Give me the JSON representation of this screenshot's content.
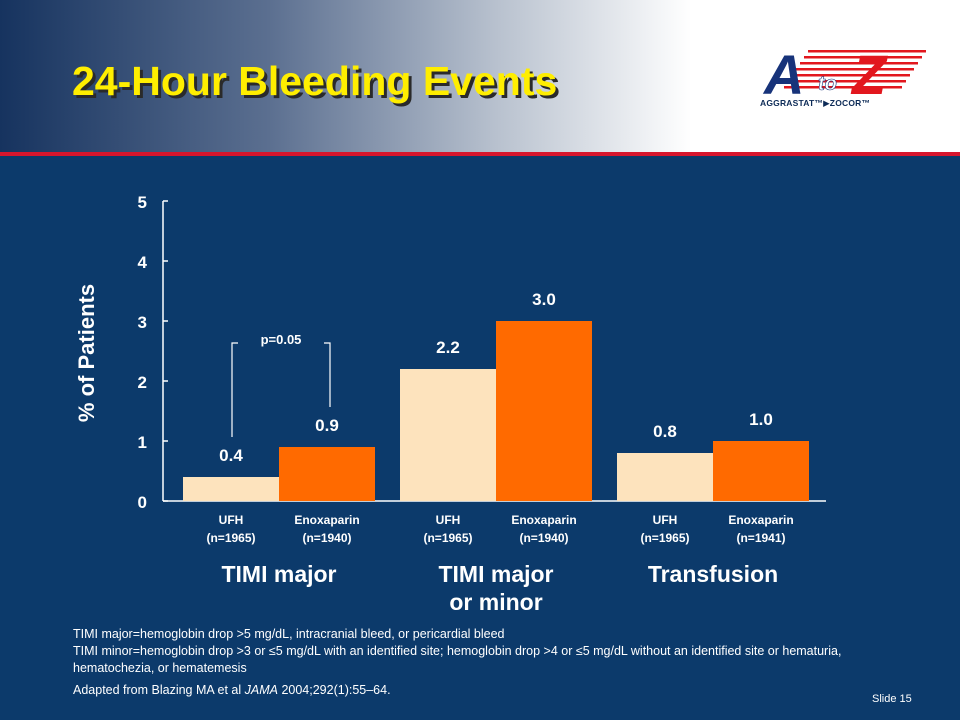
{
  "slide": {
    "title": "24-Hour Bleeding Events",
    "slide_number": "Slide 15"
  },
  "logo": {
    "letter_a": "A",
    "letter_to": "to",
    "letter_z": "Z",
    "caption": "AGGRASTAT™▶ZOCOR™",
    "colors": {
      "blue": "#17337a",
      "red": "#e2171e"
    }
  },
  "chart_data": {
    "type": "bar",
    "ylabel": "% of Patients",
    "ylim": [
      0,
      5
    ],
    "yticks": [
      "0",
      "1",
      "2",
      "3",
      "4",
      "5"
    ],
    "groups": [
      {
        "label": [
          "TIMI major"
        ],
        "bars": [
          {
            "name": "UFH",
            "n": "(n=1965)",
            "value": 0.4,
            "label": "0.4",
            "color": "#fde3bd"
          },
          {
            "name": "Enoxaparin",
            "n": "(n=1940)",
            "value": 0.9,
            "label": "0.9",
            "color": "#ff6a00"
          }
        ],
        "annotation": "p=0.05"
      },
      {
        "label": [
          "TIMI major",
          "or minor"
        ],
        "bars": [
          {
            "name": "UFH",
            "n": "(n=1965)",
            "value": 2.2,
            "label": "2.2",
            "color": "#fde3bd"
          },
          {
            "name": "Enoxaparin",
            "n": "(n=1940)",
            "value": 3.0,
            "label": "3.0",
            "color": "#ff6a00"
          }
        ]
      },
      {
        "label": [
          "Transfusion"
        ],
        "bars": [
          {
            "name": "UFH",
            "n": "(n=1965)",
            "value": 0.8,
            "label": "0.8",
            "color": "#fde3bd"
          },
          {
            "name": "Enoxaparin",
            "n": "(n=1941)",
            "value": 1.0,
            "label": "1.0",
            "color": "#ff6a00"
          }
        ]
      }
    ]
  },
  "footnotes": {
    "line1": "TIMI major=hemoglobin drop >5 mg/dL, intracranial bleed, or pericardial bleed",
    "line2": "TIMI minor=hemoglobin drop >3 or ≤5 mg/dL with an identified site; hemoglobin drop >4 or ≤5 mg/dL without an identified site or hematuria, hematochezia, or hematemesis",
    "source_prefix": "Adapted from Blazing MA et al ",
    "source_journal": "JAMA",
    "source_suffix": " 2004;292(1):55–64."
  }
}
